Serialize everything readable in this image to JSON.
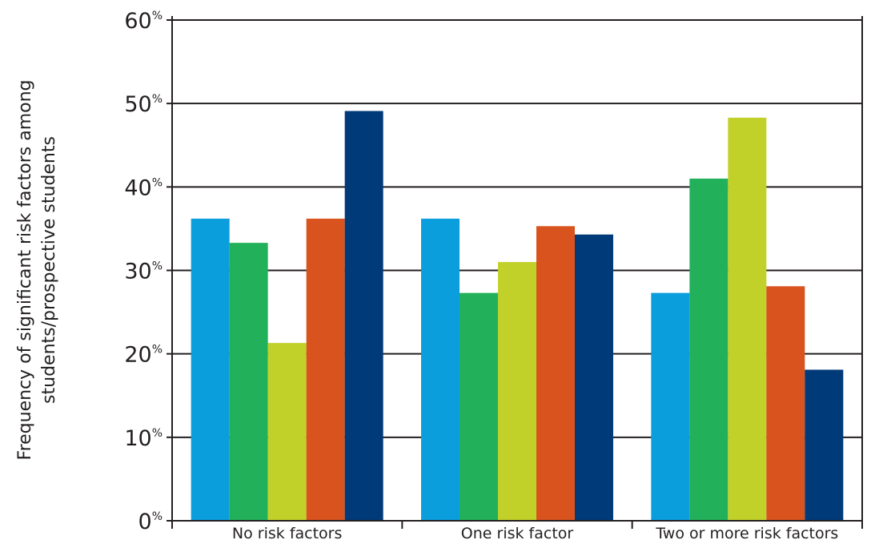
{
  "chart_data": {
    "type": "bar",
    "title": "",
    "xlabel": "",
    "ylabel_lines": [
      "Frequency of significant risk factors among",
      "students/prospective students"
    ],
    "ylim": [
      0,
      60
    ],
    "yticks": [
      0,
      10,
      20,
      30,
      40,
      50,
      60
    ],
    "ytick_labels": [
      {
        "num": "0",
        "suffix": "%"
      },
      {
        "num": "10",
        "suffix": "%"
      },
      {
        "num": "20",
        "suffix": "%"
      },
      {
        "num": "30",
        "suffix": "%"
      },
      {
        "num": "40",
        "suffix": "%"
      },
      {
        "num": "50",
        "suffix": "%"
      },
      {
        "num": "60",
        "suffix": "%"
      }
    ],
    "grid": true,
    "legend": "none",
    "categories": [
      "No risk factors",
      "One risk factor",
      "Two or more risk factors"
    ],
    "series": [
      {
        "color": "#0a9edc",
        "values": [
          36.2,
          36.2,
          27.3
        ]
      },
      {
        "color": "#22b15a",
        "values": [
          33.3,
          27.3,
          41.0
        ]
      },
      {
        "color": "#c2d12a",
        "values": [
          21.3,
          31.0,
          48.3
        ]
      },
      {
        "color": "#d9531e",
        "values": [
          36.2,
          35.3,
          28.1
        ]
      },
      {
        "color": "#003a78",
        "values": [
          49.1,
          34.3,
          18.1
        ]
      }
    ]
  }
}
